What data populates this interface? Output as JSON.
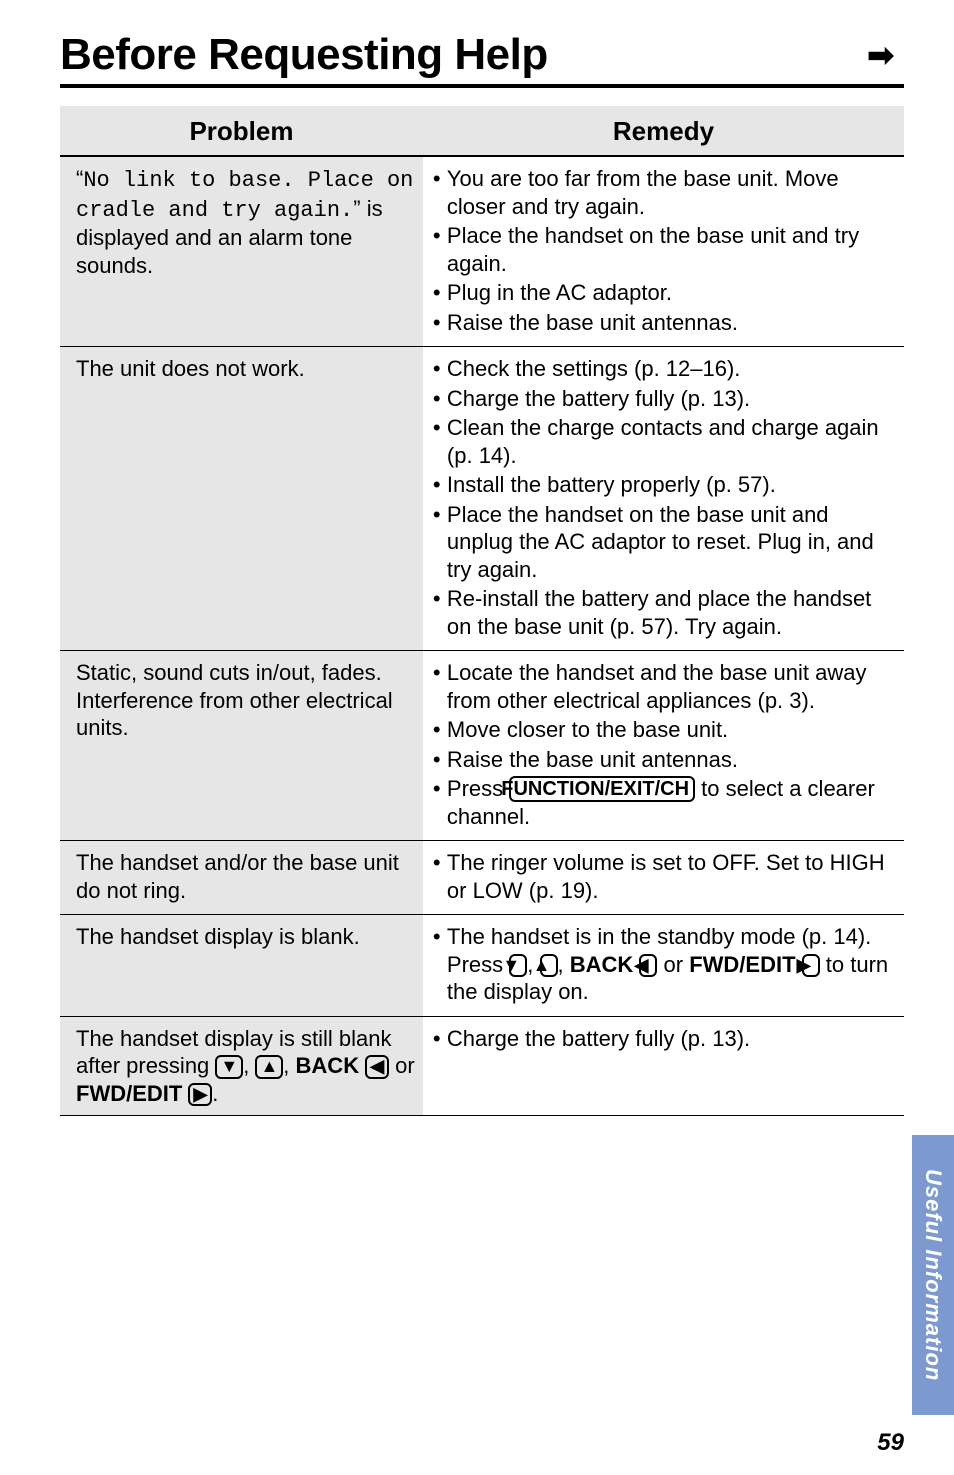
{
  "title": "Before Requesting Help",
  "arrow_glyph": "➡",
  "headers": {
    "problem": "Problem",
    "remedy": "Remedy"
  },
  "rows": [
    {
      "problem_html": "“<span class='mono'>No link to base. Place on cradle and try again.</span>” is displayed and an alarm tone sounds.",
      "remedy_items": [
        "You are too far from the base unit. Move closer and try again.",
        "Place the handset on the base unit and try again.",
        "Plug in the AC adaptor.",
        "Raise the base unit antennas."
      ]
    },
    {
      "problem_html": "The unit does not work.",
      "remedy_items": [
        "Check the settings (p. 12–16).",
        "Charge the battery fully (p. 13).",
        "Clean the charge contacts and charge again (p. 14).",
        "Install the battery properly (p. 57).",
        "Place the handset on the base unit and unplug the AC adaptor to reset. Plug in, and try again.",
        "Re-install the battery and place the handset on the base unit (p. 57). Try again."
      ]
    },
    {
      "problem_html": "Static, sound cuts in/out, fades. Interference from other electrical units.",
      "remedy_items": [
        "Locate the handset and the base unit away from other electrical appliances (p. 3).",
        "Move closer to the base unit.",
        "Raise the base unit antennas.",
        "Press <span class='btn'>FUNCTION/EXIT/CH</span> to select a clearer channel."
      ]
    },
    {
      "problem_html": "The handset and/or the base unit do not ring.",
      "remedy_items": [
        "The ringer volume is set to OFF. Set to HIGH or LOW (p. 19)."
      ]
    },
    {
      "problem_html": "The handset display is blank.",
      "remedy_items": [
        "The handset is in the standby mode (p. 14). Press <span class='btn sm'>▼</span>, <span class='btn sm'>▲</span>, <span class='bold'>BACK</span> <span class='btn sm'>◀</span> or <span class='bold'>FWD/EDIT</span> <span class='btn sm'>▶</span> to turn the display on."
      ]
    },
    {
      "problem_html": "The handset display is still blank after pressing <span class='btn sm'>▼</span>, <span class='btn sm'>▲</span>, <span class='bold'>BACK</span> <span class='btn sm'>◀</span> or <span class='bold'>FWD/EDIT</span> <span class='btn sm'>▶</span>.",
      "remedy_items": [
        "Charge the battery fully (p. 13)."
      ]
    }
  ],
  "side_tab": "Useful Information",
  "page_number": "59",
  "colors": {
    "tab_bg": "#7d9ad0",
    "shade_bg": "#e6e6e6"
  }
}
